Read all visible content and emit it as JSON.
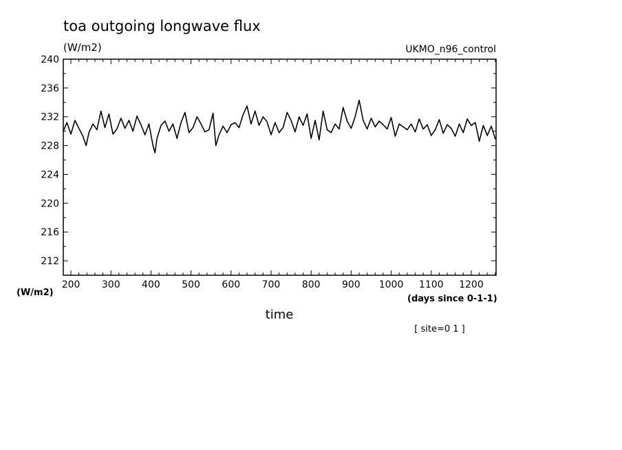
{
  "chart_data": {
    "type": "line",
    "title": "toa outgoing longwave flux",
    "units_top": "(W/m2)",
    "subtitle": "UKMO_n96_control",
    "ylabel": "(W/m2)",
    "xlabel": "time",
    "xunits": "(days since 0-1-1)",
    "footnote": "[ site=0 1 ]",
    "xlim": [
      181,
      1262
    ],
    "ylim": [
      210,
      240
    ],
    "xticks": [
      200,
      300,
      400,
      500,
      600,
      700,
      800,
      900,
      1000,
      1100,
      1200
    ],
    "yticks": [
      212,
      216,
      220,
      224,
      228,
      232,
      236,
      240
    ],
    "grid": false,
    "series": [
      {
        "x": [
          181,
          190,
          200,
          210,
          220,
          230,
          238,
          245,
          255,
          265,
          275,
          285,
          295,
          305,
          315,
          325,
          335,
          345,
          355,
          365,
          375,
          385,
          395,
          405,
          410,
          415,
          425,
          435,
          445,
          455,
          465,
          475,
          485,
          495,
          505,
          515,
          525,
          535,
          545,
          555,
          562,
          570,
          580,
          590,
          600,
          610,
          620,
          630,
          640,
          650,
          660,
          670,
          680,
          690,
          700,
          710,
          720,
          730,
          740,
          750,
          760,
          770,
          780,
          790,
          800,
          810,
          820,
          830,
          840,
          850,
          860,
          870,
          880,
          890,
          900,
          910,
          920,
          930,
          940,
          950,
          960,
          970,
          980,
          990,
          1000,
          1010,
          1020,
          1030,
          1040,
          1050,
          1060,
          1070,
          1080,
          1090,
          1100,
          1110,
          1120,
          1130,
          1140,
          1150,
          1160,
          1170,
          1180,
          1190,
          1200,
          1210,
          1220,
          1230,
          1240,
          1250,
          1260
        ],
        "y": [
          230.0,
          231.2,
          229.6,
          231.5,
          230.4,
          229.3,
          228.0,
          229.8,
          231.0,
          230.2,
          232.8,
          230.5,
          232.4,
          229.6,
          230.3,
          231.8,
          230.4,
          231.5,
          230.0,
          232.1,
          230.9,
          229.5,
          231.0,
          228.0,
          227.0,
          229.0,
          230.8,
          231.4,
          230.0,
          231.0,
          229.0,
          231.2,
          232.6,
          229.8,
          230.5,
          232.0,
          231.0,
          229.9,
          230.2,
          232.5,
          228.0,
          229.5,
          230.7,
          229.8,
          230.9,
          231.2,
          230.5,
          232.3,
          233.5,
          231.0,
          232.8,
          230.8,
          232.0,
          231.3,
          229.5,
          231.2,
          229.8,
          230.5,
          232.6,
          231.5,
          229.9,
          232.0,
          230.8,
          232.4,
          229.0,
          231.5,
          228.8,
          232.8,
          230.2,
          229.8,
          231.0,
          230.3,
          233.3,
          231.4,
          230.4,
          232.0,
          234.3,
          231.5,
          230.3,
          231.8,
          230.6,
          231.4,
          230.9,
          230.3,
          231.9,
          229.3,
          231.0,
          230.6,
          230.2,
          231.0,
          229.9,
          231.7,
          230.3,
          230.9,
          229.4,
          230.2,
          231.6,
          229.7,
          230.9,
          230.4,
          229.3,
          231.0,
          229.8,
          231.7,
          230.8,
          231.2,
          228.6,
          230.8,
          229.4,
          230.7,
          228.9
        ]
      }
    ]
  }
}
